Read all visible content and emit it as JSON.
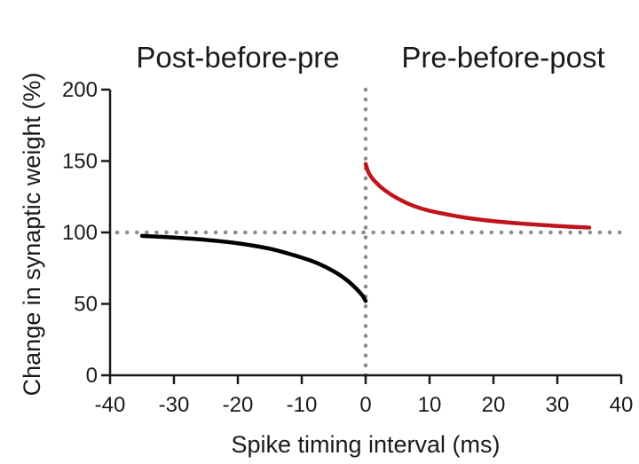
{
  "chart_data": {
    "type": "line",
    "xlabel": "Spike timing interval (ms)",
    "ylabel": "Change in synaptic weight (%)",
    "xlim": [
      -40,
      40
    ],
    "ylim": [
      0,
      200
    ],
    "x_ticks": [
      -40,
      -30,
      -20,
      -10,
      0,
      10,
      20,
      30,
      40
    ],
    "y_ticks": [
      0,
      50,
      100,
      150,
      200
    ],
    "annotations": [
      {
        "text": "Post-before-pre",
        "region": "left"
      },
      {
        "text": "Pre-before-post",
        "region": "right"
      }
    ],
    "reference_lines": [
      {
        "orientation": "horizontal",
        "value": 100,
        "style": "dotted",
        "color": "#8c8c8c"
      },
      {
        "orientation": "vertical",
        "value": 0,
        "style": "dotted",
        "color": "#8c8c8c"
      }
    ],
    "series": [
      {
        "color": "#000000",
        "x": [
          -35,
          -30,
          -25,
          -20,
          -15,
          -10,
          -7.5,
          -5,
          -3,
          -1.5,
          -0.5,
          0
        ],
        "values": [
          97.6,
          96.4,
          94.8,
          92.4,
          88.6,
          82.4,
          78.4,
          72.8,
          66.8,
          60.8,
          55.8,
          52
        ]
      },
      {
        "color": "#c0141c",
        "x": [
          0,
          0.5,
          1.5,
          3,
          5,
          7.5,
          10,
          15,
          20,
          25,
          30,
          35
        ],
        "values": [
          148,
          141.5,
          135.5,
          129.5,
          123.8,
          118.6,
          115.2,
          110.8,
          107.9,
          106,
          104.5,
          103.4
        ]
      }
    ]
  }
}
